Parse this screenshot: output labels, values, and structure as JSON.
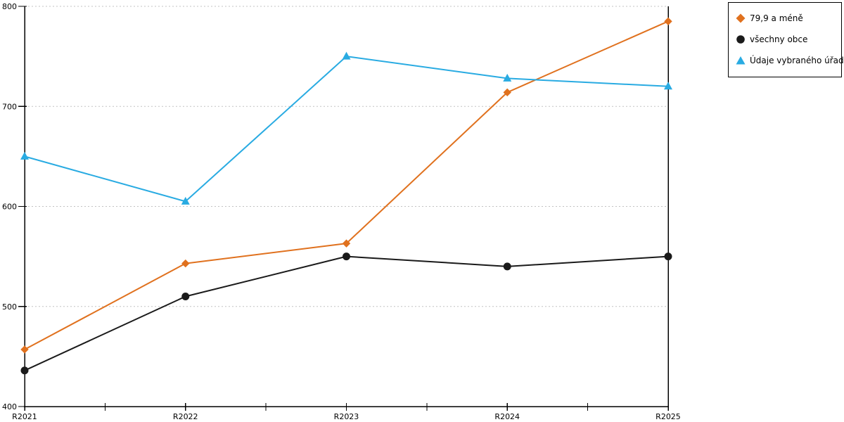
{
  "chart_data": {
    "type": "line",
    "title": "",
    "xlabel": "",
    "ylabel": "",
    "categories": [
      "R2021",
      "R2022",
      "R2023",
      "R2024",
      "R2025"
    ],
    "series": [
      {
        "name": "79,9 a méně",
        "marker": "diamond",
        "color": "#E0711E",
        "values": [
          457,
          543,
          563,
          714,
          785
        ]
      },
      {
        "name": "všechny obce",
        "marker": "circle",
        "color": "#1A1A1A",
        "values": [
          436,
          510,
          550,
          540,
          550
        ]
      },
      {
        "name": "Údaje vybraného úřadu",
        "marker": "triangle",
        "color": "#29ABE2",
        "values": [
          650,
          605,
          750,
          728,
          720
        ]
      }
    ],
    "ylim": [
      400,
      800
    ],
    "yticks": [
      400,
      500,
      600,
      700,
      800
    ],
    "x_minor_ticks": "midpoints",
    "grid": "horizontal-dotted",
    "legend_position": "top-right-outside"
  },
  "colors": {
    "background": "#ffffff",
    "axis": "#000000",
    "gridline": "#c3c3c3",
    "text": "#000000"
  }
}
